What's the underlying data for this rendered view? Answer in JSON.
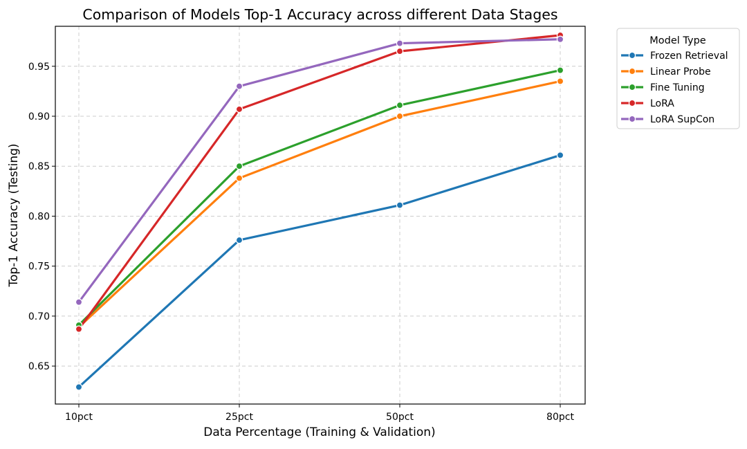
{
  "chart_data": {
    "type": "line",
    "title": "Comparison of Models Top-1 Accuracy across different Data Stages",
    "xlabel": "Data Percentage (Training & Validation)",
    "ylabel": "Top-1 Accuracy (Testing)",
    "categories": [
      "10pct",
      "25pct",
      "50pct",
      "80pct"
    ],
    "ylim": [
      0.612,
      0.99
    ],
    "yticks": [
      0.65,
      0.7,
      0.75,
      0.8,
      0.85,
      0.9,
      0.95
    ],
    "ytick_labels": [
      "0.65",
      "0.70",
      "0.75",
      "0.80",
      "0.85",
      "0.90",
      "0.95"
    ],
    "grid": true,
    "legend": {
      "title": "Model Type",
      "placement": "outside-upper-right"
    },
    "series": [
      {
        "name": "Frozen Retrieval",
        "color": "#1f77b4",
        "values": [
          0.629,
          0.776,
          0.811,
          0.861
        ]
      },
      {
        "name": "Linear Probe",
        "color": "#ff7f0e",
        "values": [
          0.689,
          0.838,
          0.9,
          0.935
        ]
      },
      {
        "name": "Fine Tuning",
        "color": "#2ca02c",
        "values": [
          0.691,
          0.85,
          0.911,
          0.946
        ]
      },
      {
        "name": "LoRA",
        "color": "#d62728",
        "values": [
          0.687,
          0.907,
          0.965,
          0.981
        ]
      },
      {
        "name": "LoRA SupCon",
        "color": "#9467bd",
        "values": [
          0.714,
          0.93,
          0.973,
          0.977
        ]
      }
    ]
  }
}
